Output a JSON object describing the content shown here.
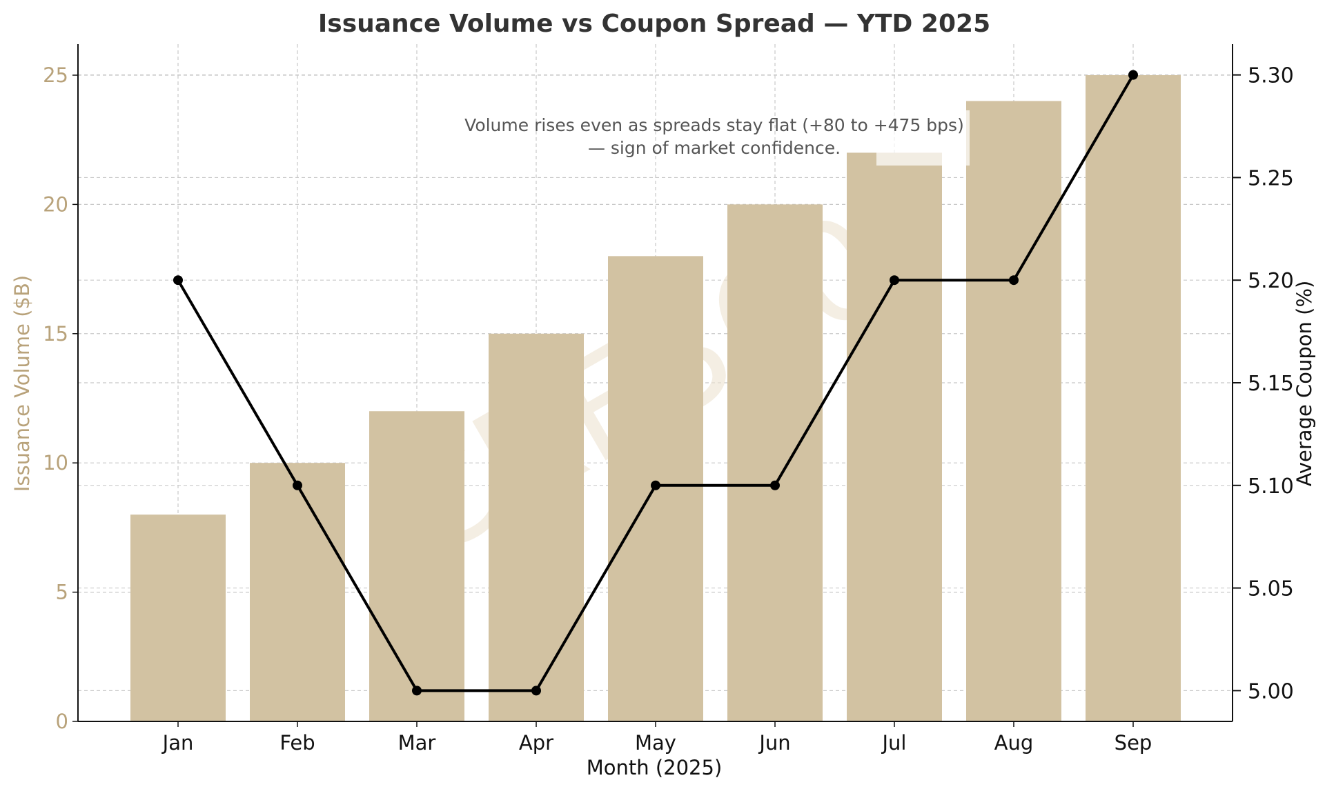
{
  "colors": {
    "bar": "#d2c2a2",
    "line": "#000000",
    "left_axis_text": "#b8a27a",
    "right_axis_text": "#111111",
    "grid": "#c8c8c8",
    "annotation_text": "#555555",
    "watermark": "#ede3d0",
    "title_text": "#333333"
  },
  "chart_data": {
    "type": "bar",
    "title": "Issuance Volume vs Coupon Spread — YTD 2025",
    "xlabel": "Month (2025)",
    "ylabel": "Issuance Volume ($B)",
    "y2label": "Average Coupon (%)",
    "categories": [
      "Jan",
      "Feb",
      "Mar",
      "Apr",
      "May",
      "Jun",
      "Jul",
      "Aug",
      "Sep"
    ],
    "ylim": [
      0,
      26.2
    ],
    "y2lim": [
      4.985,
      5.315
    ],
    "yticks": [
      0,
      5,
      10,
      15,
      20,
      25
    ],
    "y2ticks": [
      5.0,
      5.05,
      5.1,
      5.15,
      5.2,
      5.25,
      5.3
    ],
    "y2tick_labels": [
      "5.00",
      "5.05",
      "5.10",
      "5.15",
      "5.20",
      "5.25",
      "5.30"
    ],
    "grid": true,
    "series": [
      {
        "type": "bar",
        "axis": "left",
        "values": [
          8,
          10,
          12,
          15,
          18,
          20,
          22,
          24,
          25
        ]
      },
      {
        "type": "line",
        "axis": "right",
        "values": [
          5.2,
          5.1,
          5.0,
          5.0,
          5.1,
          5.1,
          5.2,
          5.2,
          5.3
        ]
      }
    ],
    "annotation": {
      "lines": [
        "Volume rises even as spreads stay flat (+80 to +475 bps)",
        "— sign of market confidence."
      ]
    },
    "watermark": "CRE360"
  }
}
